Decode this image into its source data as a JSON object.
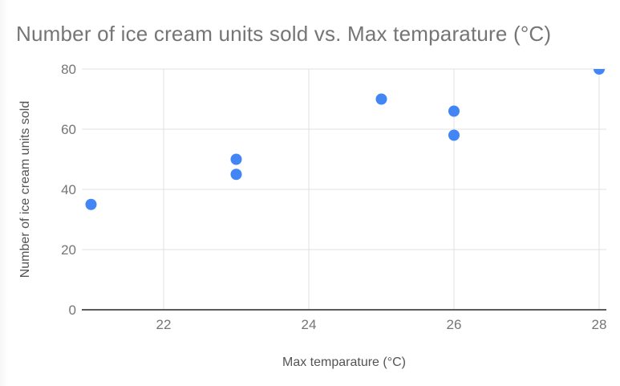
{
  "page": {
    "background": "#ffffff"
  },
  "chart_data": {
    "type": "scatter",
    "title": "Number of ice cream units sold vs. Max temparature (°C)",
    "xlabel": "Max temparature (°C)",
    "ylabel": "Number of ice cream units sold",
    "x_ticks": [
      22,
      24,
      26,
      28
    ],
    "y_ticks": [
      0,
      20,
      40,
      60,
      80
    ],
    "xlim": [
      20.9,
      28.1
    ],
    "ylim": [
      0,
      80
    ],
    "grid": true,
    "legend": "none",
    "points": [
      {
        "x": 21,
        "y": 35
      },
      {
        "x": 23,
        "y": 45
      },
      {
        "x": 23,
        "y": 50
      },
      {
        "x": 25,
        "y": 70
      },
      {
        "x": 26,
        "y": 58
      },
      {
        "x": 26,
        "y": 66
      },
      {
        "x": 28,
        "y": 80
      }
    ],
    "marker": {
      "shape": "circle",
      "radius": 7
    },
    "colors": {
      "point": "#4285f4",
      "gridline": "#e1e1e1",
      "baseline": "#5b5b5b",
      "title_text": "#757575",
      "tick_text": "#757575",
      "axis_title_text": "#545454"
    }
  }
}
